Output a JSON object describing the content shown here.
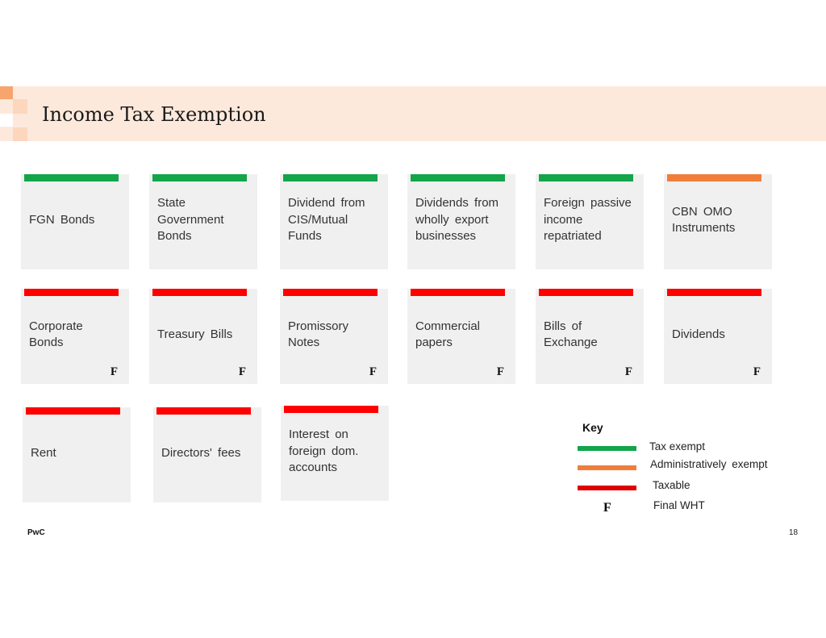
{
  "title": "Income Tax Exemption",
  "colors": {
    "tax_exempt": "#12a54a",
    "admin_exempt": "#f07e3a",
    "taxable": "#ff0000",
    "banner": "#fde9dc"
  },
  "cards": [
    {
      "label": "FGN Bonds",
      "status": "tax_exempt",
      "final_wht": ""
    },
    {
      "label": "State Government Bonds",
      "status": "tax_exempt",
      "final_wht": ""
    },
    {
      "label": "Dividend from CIS/Mutual Funds",
      "status": "tax_exempt",
      "final_wht": ""
    },
    {
      "label": "Dividends from wholly export businesses",
      "status": "tax_exempt",
      "final_wht": ""
    },
    {
      "label": "Foreign passive income repatriated",
      "status": "tax_exempt",
      "final_wht": ""
    },
    {
      "label": "CBN OMO Instruments",
      "status": "admin_exempt",
      "final_wht": ""
    },
    {
      "label": "Corporate Bonds",
      "status": "taxable",
      "final_wht": "F"
    },
    {
      "label": "Treasury Bills",
      "status": "taxable",
      "final_wht": "F"
    },
    {
      "label": "Promissory Notes",
      "status": "taxable",
      "final_wht": "F"
    },
    {
      "label": "Commercial papers",
      "status": "taxable",
      "final_wht": "F"
    },
    {
      "label": "Bills of Exchange",
      "status": "taxable",
      "final_wht": "F"
    },
    {
      "label": "Dividends",
      "status": "taxable",
      "final_wht": "F"
    },
    {
      "label": "Rent",
      "status": "taxable",
      "final_wht": ""
    },
    {
      "label": "Directors' fees",
      "status": "taxable",
      "final_wht": ""
    },
    {
      "label": "Interest on foreign dom. accounts",
      "status": "taxable",
      "final_wht": ""
    }
  ],
  "key": {
    "title": "Key",
    "tax_exempt": "Tax exempt",
    "admin_exempt": "Administratively exempt",
    "taxable": "Taxable",
    "final_symbol": "F",
    "final_wht": "Final WHT"
  },
  "footer": {
    "brand": "PwC",
    "page_number": "18"
  }
}
